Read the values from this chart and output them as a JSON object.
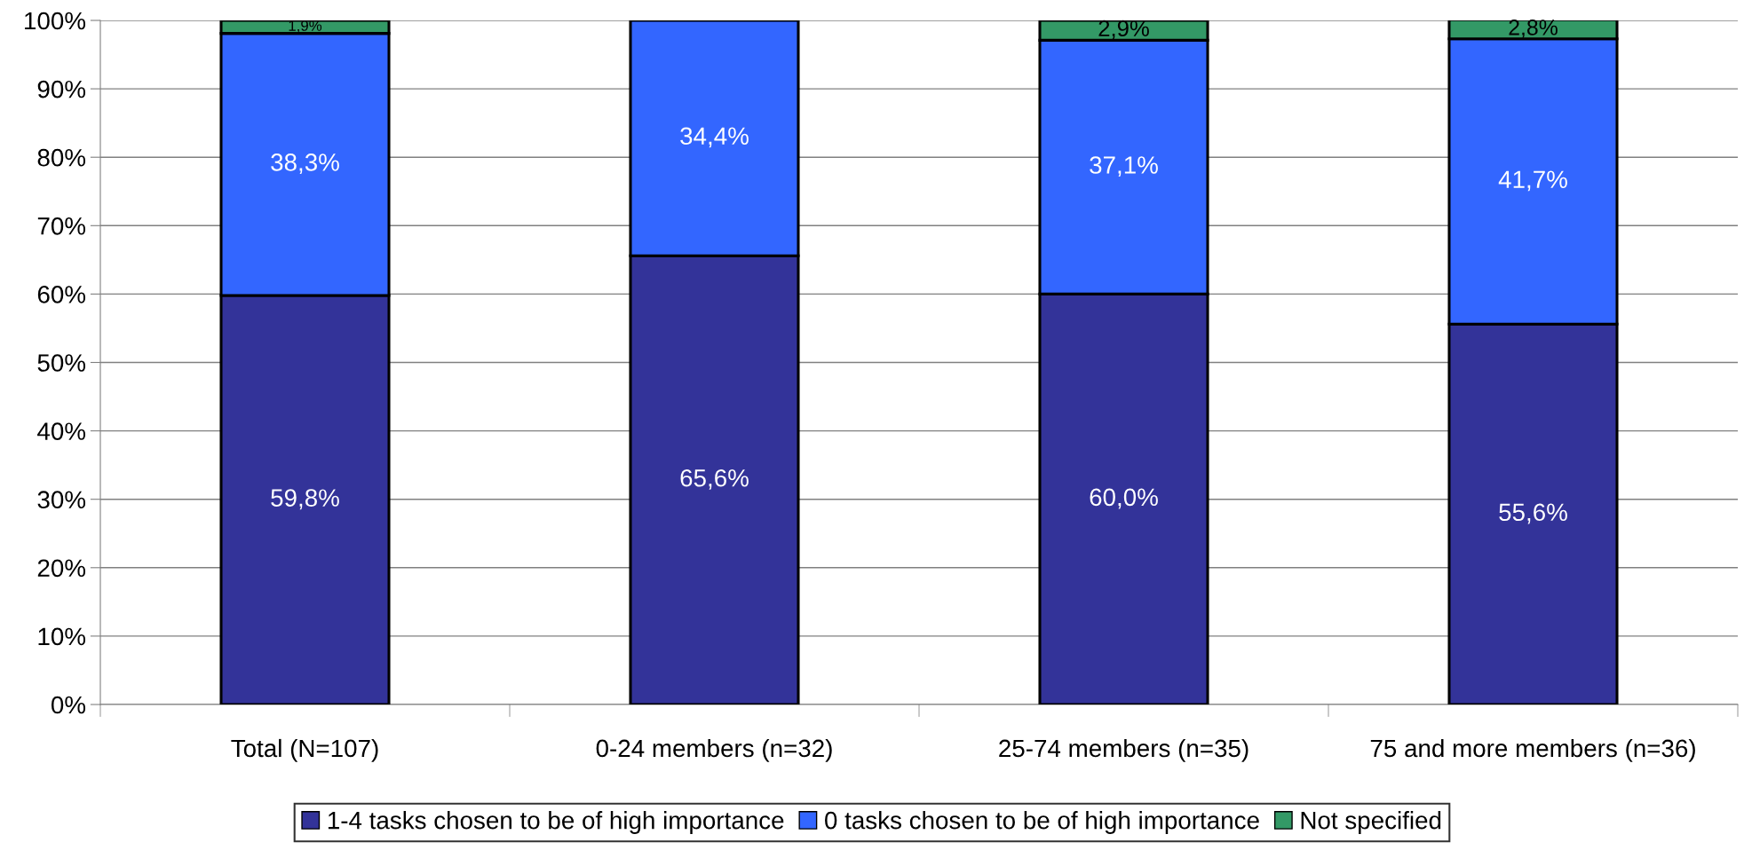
{
  "chart_data": {
    "type": "bar",
    "stacked": true,
    "categories": [
      "Total (N=107)",
      "0-24 members (n=32)",
      "25-74 members (n=35)",
      "75 and more members (n=36)"
    ],
    "series": [
      {
        "name": "1-4 tasks chosen to be of high importance",
        "color": "#333399",
        "values": [
          59.8,
          65.6,
          60.0,
          55.6
        ],
        "value_labels": [
          "59,8%",
          "65,6%",
          "60,0%",
          "55,6%"
        ]
      },
      {
        "name": "0 tasks chosen to be of high importance",
        "color": "#3366ff",
        "values": [
          38.3,
          34.4,
          37.1,
          41.7
        ],
        "value_labels": [
          "38,3%",
          "34,4%",
          "37,1%",
          "41,7%"
        ]
      },
      {
        "name": "Not specified",
        "color": "#339966",
        "values": [
          1.9,
          null,
          2.9,
          2.8
        ],
        "value_labels": [
          "1,9%",
          null,
          "2,9%",
          "2,8%"
        ]
      }
    ],
    "ylim": [
      0,
      100
    ],
    "yticks": [
      {
        "value": 0,
        "label": "0%"
      },
      {
        "value": 10,
        "label": "10%"
      },
      {
        "value": 20,
        "label": "20%"
      },
      {
        "value": 30,
        "label": "30%"
      },
      {
        "value": 40,
        "label": "40%"
      },
      {
        "value": 50,
        "label": "50%"
      },
      {
        "value": 60,
        "label": "60%"
      },
      {
        "value": 70,
        "label": "70%"
      },
      {
        "value": 80,
        "label": "80%"
      },
      {
        "value": 90,
        "label": "90%"
      },
      {
        "value": 100,
        "label": "100%"
      }
    ],
    "grid": "y",
    "legend": "bottom"
  }
}
